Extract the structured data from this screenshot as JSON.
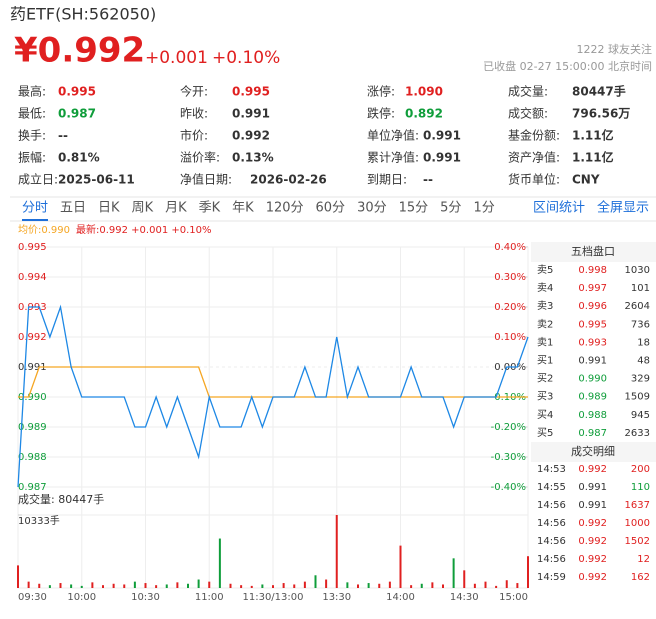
{
  "header": {
    "title": "药ETF(SH:562050)",
    "price": "¥0.992",
    "change": "+0.001",
    "change_pct": "+0.10%",
    "followers": "1222 球友关注",
    "status": "已收盘 02-27 15:00:00 北京时间"
  },
  "stats": [
    [
      [
        "最高:",
        "0.995"
      ],
      [
        "今开:",
        "0.995"
      ],
      [
        "涨停:",
        "1.090"
      ],
      [
        "成交量:",
        "80447手"
      ]
    ],
    [
      [
        "最低:",
        "0.987"
      ],
      [
        "昨收:",
        "0.991"
      ],
      [
        "跌停:",
        "0.892"
      ],
      [
        "成交额:",
        "796.56万"
      ]
    ],
    [
      [
        "换手:",
        "--"
      ],
      [
        "市价:",
        "0.992"
      ],
      [
        "单位净值:",
        "0.991"
      ],
      [
        "基金份额:",
        "1.11亿"
      ]
    ],
    [
      [
        "振幅:",
        "0.81%"
      ],
      [
        "溢价率:",
        "0.13%"
      ],
      [
        "累计净值:",
        "0.991"
      ],
      [
        "资产净值:",
        "1.11亿"
      ]
    ],
    [
      [
        "成立日:",
        "2025-06-11"
      ],
      [
        "净值日期:",
        "2026-02-26"
      ],
      [
        "到期日:",
        "--"
      ],
      [
        "货币单位:",
        "CNY"
      ]
    ]
  ],
  "tabs": [
    "分时",
    "五日",
    "日K",
    "周K",
    "月K",
    "季K",
    "年K",
    "120分",
    "60分",
    "30分",
    "15分",
    "5分",
    "1分"
  ],
  "tools": [
    "区间统计",
    "全屏显示"
  ],
  "legend": {
    "avg": "均价:0.990",
    "latest": "最新:0.992 +0.001 +0.10%"
  },
  "order_book": {
    "title": "五档盘口",
    "rows": [
      [
        "卖5",
        "0.998",
        "1030"
      ],
      [
        "卖4",
        "0.997",
        "101"
      ],
      [
        "卖3",
        "0.996",
        "2604"
      ],
      [
        "卖2",
        "0.995",
        "736"
      ],
      [
        "卖1",
        "0.993",
        "18"
      ],
      [
        "买1",
        "0.991",
        "48"
      ],
      [
        "买2",
        "0.990",
        "329"
      ],
      [
        "买3",
        "0.989",
        "1509"
      ],
      [
        "买4",
        "0.988",
        "945"
      ],
      [
        "买5",
        "0.987",
        "2633"
      ]
    ]
  },
  "trades": {
    "title": "成交明细",
    "rows": [
      [
        "14:53",
        "0.992",
        "200"
      ],
      [
        "14:55",
        "0.991",
        "110"
      ],
      [
        "14:56",
        "0.991",
        "1637"
      ],
      [
        "14:56",
        "0.992",
        "1000"
      ],
      [
        "14:56",
        "0.992",
        "1502"
      ],
      [
        "14:56",
        "0.992",
        "12"
      ],
      [
        "14:59",
        "0.992",
        "162"
      ]
    ]
  },
  "chart_data": {
    "type": "line",
    "categories": [
      "09:30",
      null,
      null,
      null,
      null,
      null,
      "10:00",
      null,
      null,
      null,
      null,
      null,
      "10:30",
      null,
      null,
      null,
      null,
      null,
      "11:00",
      null,
      null,
      null,
      null,
      null,
      "11:30/13:00",
      null,
      null,
      null,
      null,
      null,
      "13:30",
      null,
      null,
      null,
      null,
      null,
      "14:00",
      null,
      null,
      null,
      null,
      null,
      "14:30",
      null,
      null,
      null,
      null,
      null,
      "15:00"
    ],
    "series": [
      {
        "name": "均价",
        "color": "#f5a623",
        "values": [
          0.99,
          0.99,
          0.991,
          0.991,
          0.991,
          0.991,
          0.991,
          0.991,
          0.991,
          0.991,
          0.991,
          0.991,
          0.991,
          0.991,
          0.991,
          0.991,
          0.991,
          0.991,
          0.99,
          0.99,
          0.99,
          0.99,
          0.99,
          0.99,
          0.99,
          0.99,
          0.99,
          0.99,
          0.99,
          0.99,
          0.99,
          0.99,
          0.99,
          0.99,
          0.99,
          0.99,
          0.99,
          0.99,
          0.99,
          0.99,
          0.99,
          0.99,
          0.99,
          0.99,
          0.99,
          0.99,
          0.99,
          0.99,
          0.99
        ]
      },
      {
        "name": "最新",
        "color": "#1e88e5",
        "values": [
          0.987,
          0.993,
          0.993,
          0.992,
          0.993,
          0.991,
          0.99,
          0.99,
          0.99,
          0.99,
          0.99,
          0.989,
          0.989,
          0.99,
          0.989,
          0.99,
          0.989,
          0.988,
          0.99,
          0.989,
          0.989,
          0.989,
          0.99,
          0.989,
          0.99,
          0.99,
          0.99,
          0.991,
          0.99,
          0.99,
          0.992,
          0.99,
          0.991,
          0.99,
          0.99,
          0.99,
          0.99,
          0.991,
          0.99,
          0.99,
          0.99,
          0.989,
          0.99,
          0.99,
          0.99,
          0.99,
          0.991,
          0.991,
          0.992
        ]
      }
    ],
    "ylim": [
      0.987,
      0.995
    ],
    "yticks": [
      0.995,
      0.994,
      0.993,
      0.992,
      0.991,
      {
        "value": 0.99,
        "label": "0.990"
      },
      0.989,
      0.988,
      0.987
    ],
    "y2lim": [
      -0.4,
      0.4
    ],
    "y2ticks": [
      {
        "value": 0.4,
        "label": "0.40%"
      },
      {
        "value": 0.3,
        "label": "0.30%"
      },
      {
        "value": 0.2,
        "label": "0.20%"
      },
      {
        "value": 0.1,
        "label": "0.10%"
      },
      {
        "value": 0,
        "label": "0.00%"
      },
      {
        "value": -0.1,
        "label": "-0.10%"
      },
      {
        "value": -0.2,
        "label": "-0.20%"
      },
      {
        "value": -0.3,
        "label": "-0.30%"
      },
      {
        "value": -0.4,
        "label": "-0.40%"
      }
    ],
    "volume": {
      "title": "成交量: 80447手",
      "values": [
        3200,
        900,
        600,
        400,
        700,
        500,
        300,
        800,
        400,
        600,
        500,
        900,
        700,
        400,
        500,
        800,
        600,
        1200,
        900,
        7000,
        600,
        400,
        300,
        500,
        400,
        700,
        500,
        900,
        1800,
        1200,
        10333,
        800,
        500,
        700,
        600,
        900,
        6000,
        400,
        600,
        800,
        500,
        4200,
        2500,
        600,
        900,
        300,
        1100,
        700,
        4500
      ],
      "ylim": [
        0,
        10333
      ],
      "yticks": [
        {
          "value": 10333,
          "label": "10333手"
        }
      ]
    }
  }
}
